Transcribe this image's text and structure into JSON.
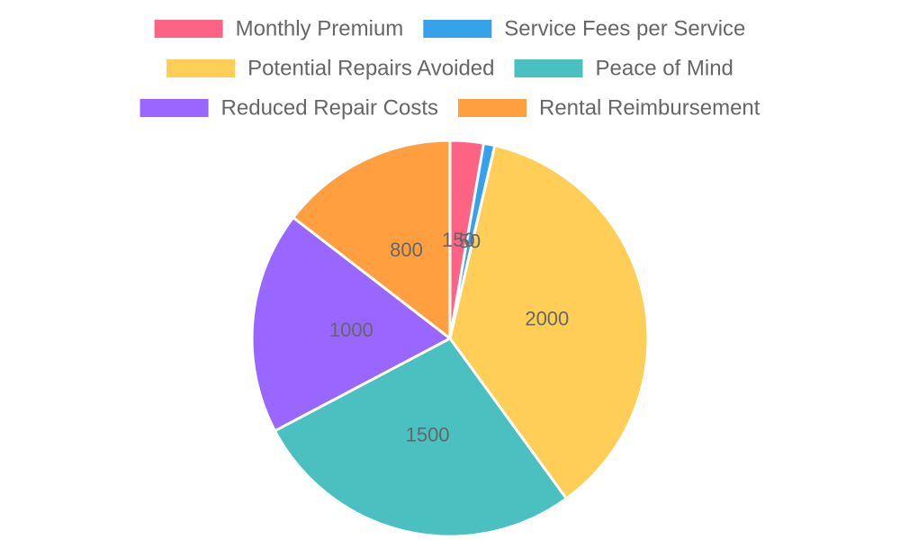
{
  "chart_data": {
    "type": "pie",
    "title": "",
    "legend_position": "top",
    "series": [
      {
        "name": "",
        "categories": [
          "Monthly Premium",
          "Service Fees per Service",
          "Potential Repairs Avoided",
          "Peace of Mind",
          "Reduced Repair Costs",
          "Rental Reimbursement"
        ],
        "values": [
          150,
          50,
          2000,
          1500,
          1000,
          800
        ],
        "colors": [
          "#ff6384",
          "#36a2eb",
          "#ffce56",
          "#4bc0c0",
          "#9966ff",
          "#ff9f40"
        ]
      }
    ]
  }
}
